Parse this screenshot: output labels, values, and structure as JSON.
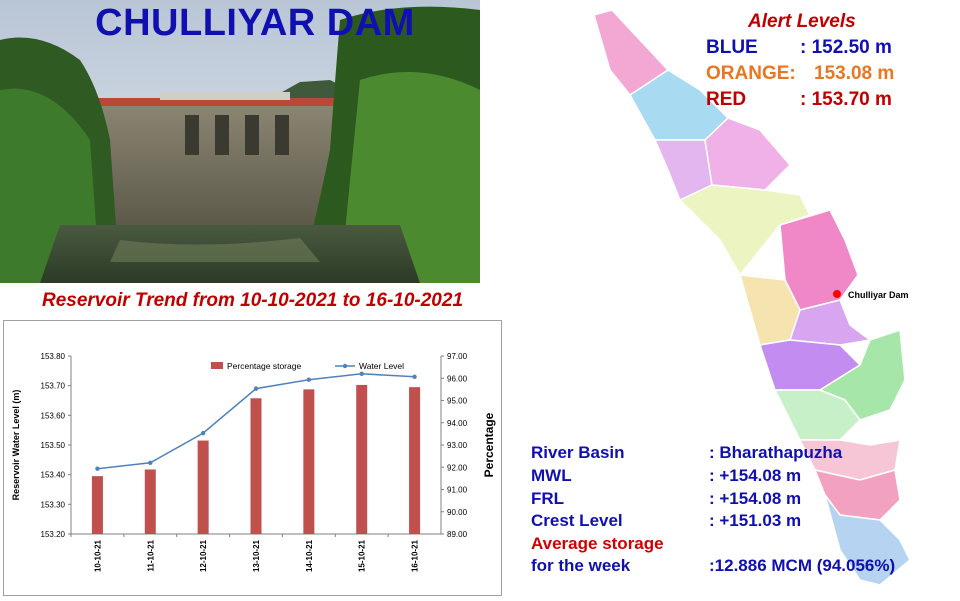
{
  "header": {
    "title": "CHULLIYAR DAM"
  },
  "trend": {
    "title": "Reservoir Trend from 10-10-2021 to 16-10-2021"
  },
  "map": {
    "marker_label": "Chulliyar Dam"
  },
  "alerts": {
    "title": "Alert Levels",
    "levels": [
      {
        "label": "BLUE",
        "value": ": 152.50 m",
        "color": "#1010b0"
      },
      {
        "label": "ORANGE:",
        "value": "153.08 m",
        "color": "#e87722"
      },
      {
        "label": "RED",
        "value": ": 153.70 m",
        "color": "#c00000"
      }
    ]
  },
  "info": {
    "river_basin": {
      "label": "River Basin",
      "value": ": Bharathapuzha"
    },
    "mwl": {
      "label": "MWL",
      "value": ": +154.08 m"
    },
    "frl": {
      "label": "FRL",
      "value": ": +154.08 m"
    },
    "crest": {
      "label": "Crest Level",
      "value": ": +151.03 m"
    },
    "avg_storage_line1": "Average storage",
    "avg_storage_line2": "for the week",
    "avg_storage_value": ":12.886 MCM (94.056%)"
  },
  "chart_data": {
    "type": "bar",
    "categories": [
      "10-10-21",
      "11-10-21",
      "12-10-21",
      "13-10-21",
      "14-10-21",
      "15-10-21",
      "16-10-21"
    ],
    "series": [
      {
        "name": "Percentage storage",
        "type": "bar",
        "axis": "right",
        "color": "#c0504d",
        "values": [
          91.6,
          91.9,
          93.2,
          95.1,
          95.5,
          95.7,
          95.6
        ]
      },
      {
        "name": "Water Level",
        "type": "line",
        "axis": "left",
        "color": "#4f81bd",
        "values": [
          153.42,
          153.44,
          153.54,
          153.69,
          153.72,
          153.74,
          153.73
        ]
      }
    ],
    "ylabel": "Reservoir Water Level (m)",
    "y2label": "Percentage",
    "ylim": [
      153.2,
      153.8
    ],
    "y2lim": [
      89.0,
      97.0
    ],
    "yticks": [
      "153.20",
      "153.30",
      "153.40",
      "153.50",
      "153.60",
      "153.70",
      "153.80"
    ],
    "y2ticks": [
      "89.00",
      "90.00",
      "91.00",
      "92.00",
      "93.00",
      "94.00",
      "95.00",
      "96.00",
      "97.00"
    ],
    "legend": "top-right",
    "grid": false
  }
}
